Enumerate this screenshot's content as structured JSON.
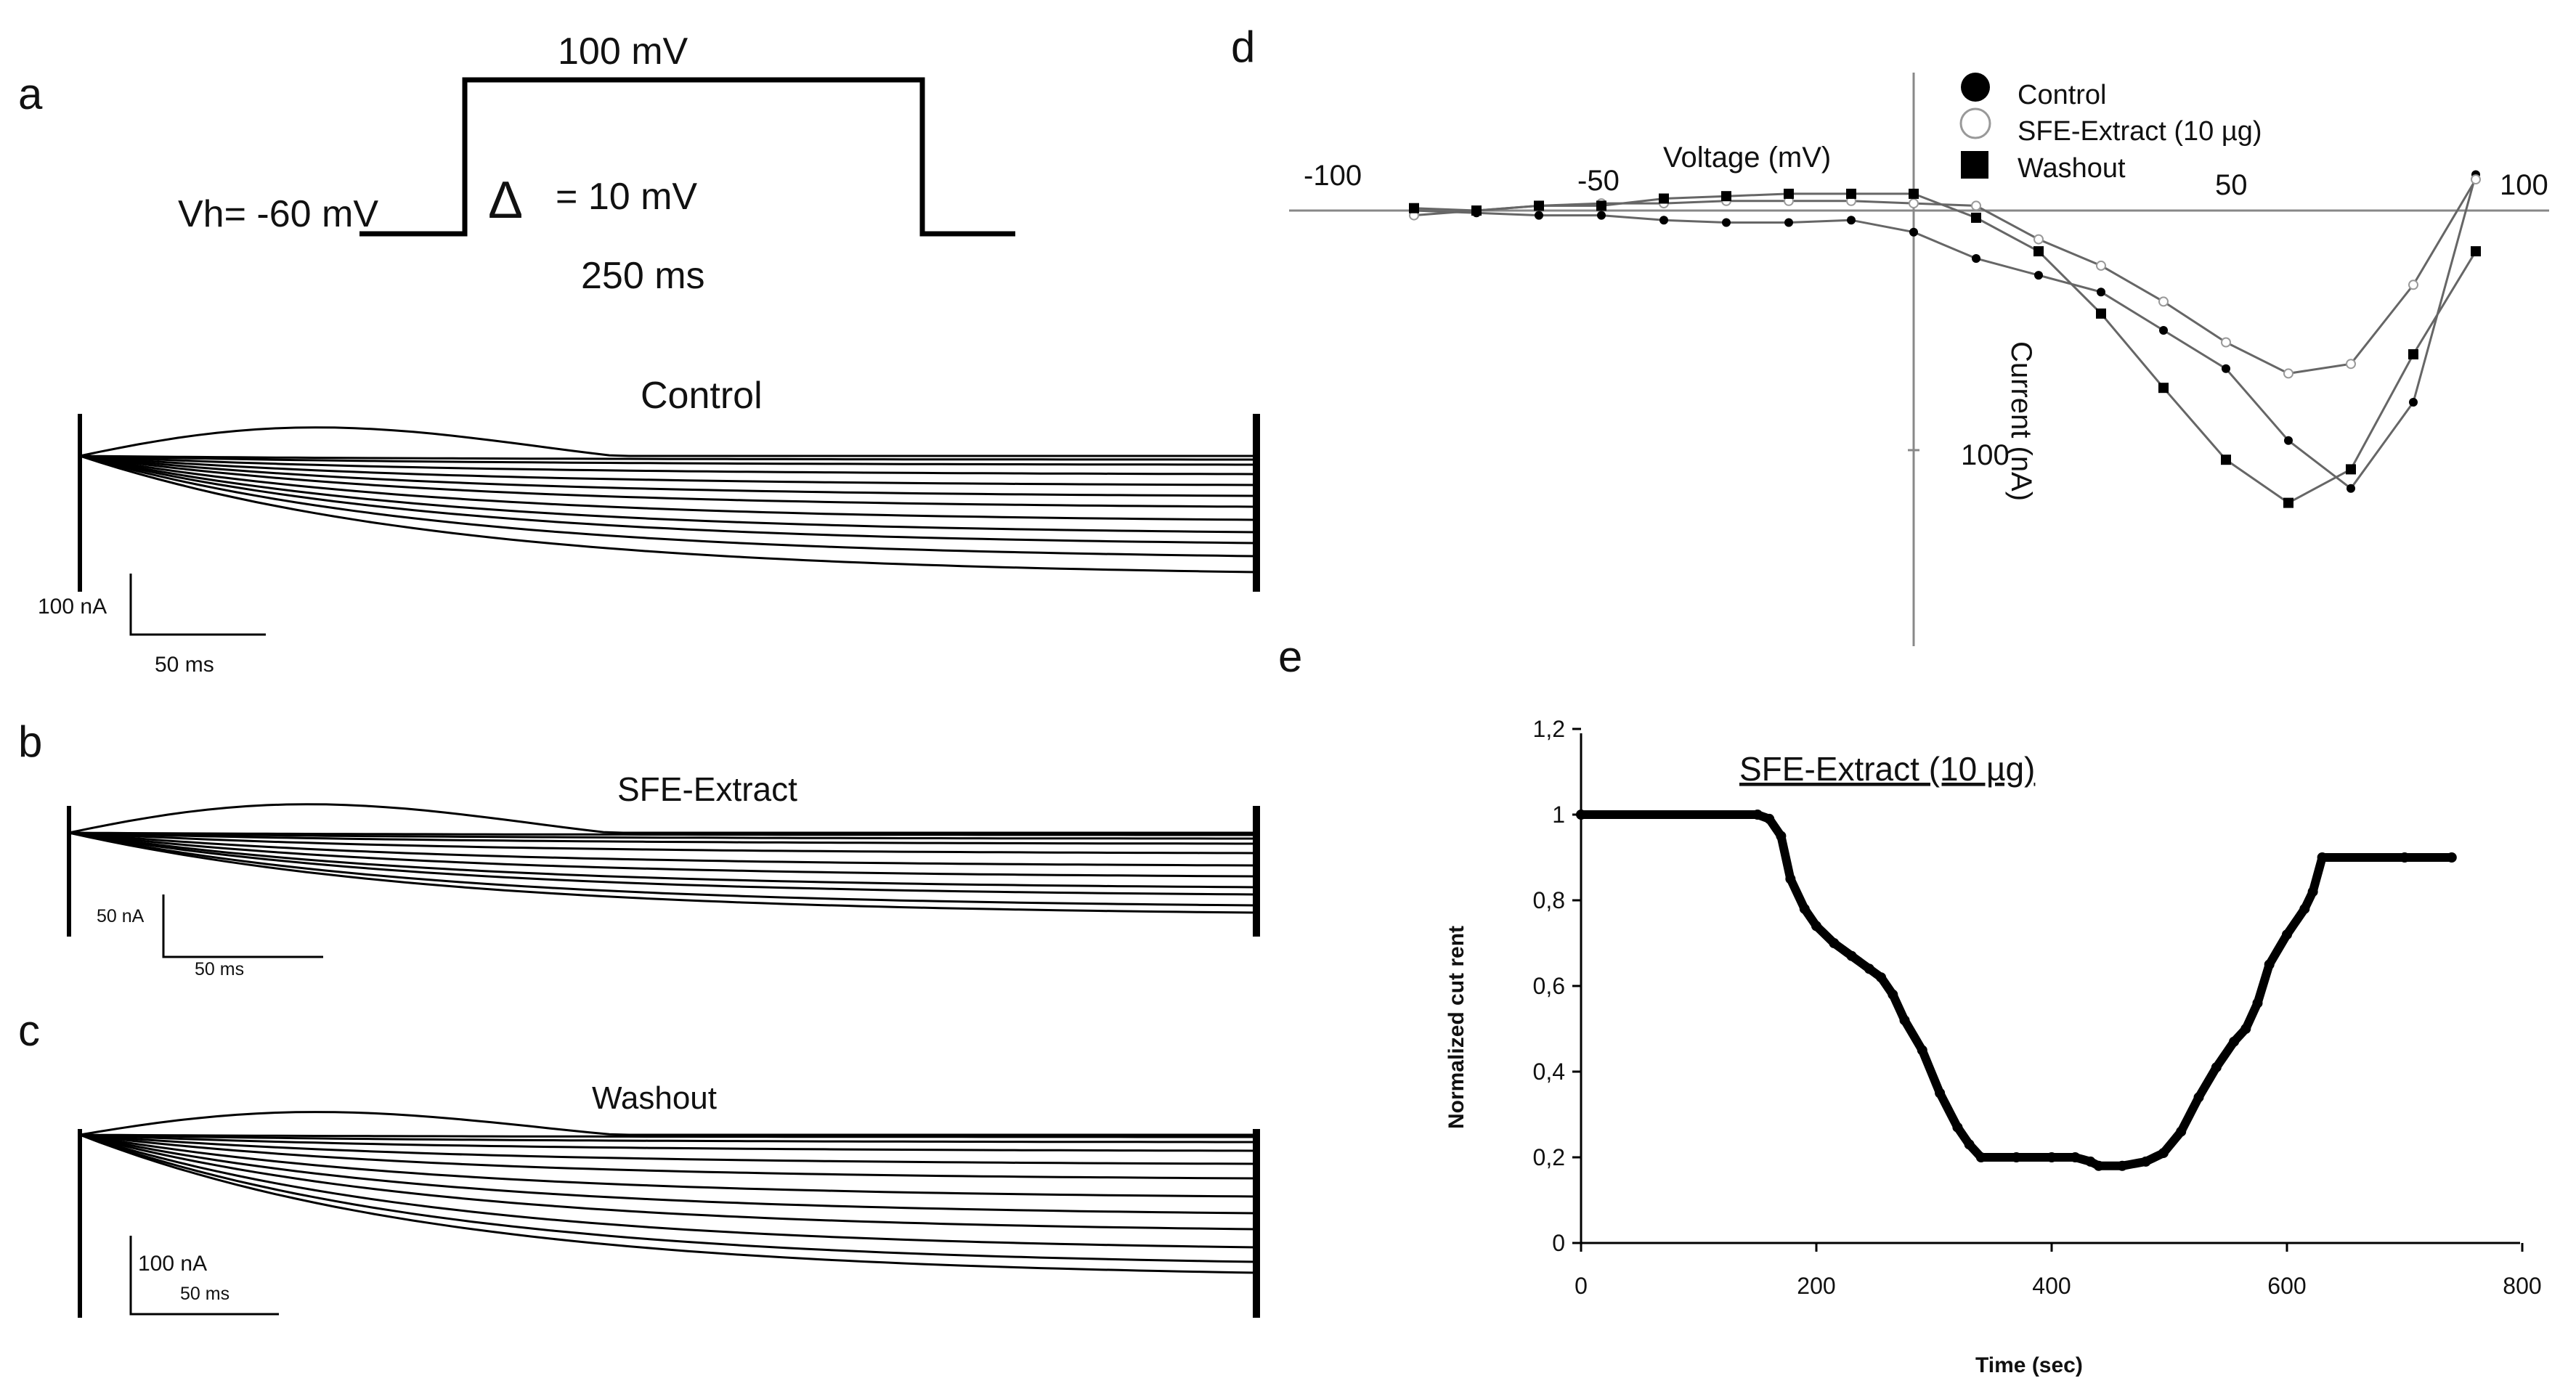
{
  "labels": {
    "a": "a",
    "b": "b",
    "c": "c",
    "d": "d",
    "e": "e"
  },
  "protocol": {
    "step_voltage": "100 mV",
    "holding": "Vh= -60 mV",
    "delta_symbol": "Δ",
    "delta_text": "= 10 mV",
    "duration": "250 ms"
  },
  "traces": {
    "control": {
      "title": "Control",
      "scale_current": "100 nA",
      "scale_time": "50 ms"
    },
    "sfe": {
      "title": "SFE-Extract",
      "scale_current": "50 nA",
      "scale_time": "50 ms"
    },
    "washout": {
      "title": "Washout",
      "scale_current": "100 nA",
      "scale_time": "50 ms"
    }
  },
  "chart_data": [
    {
      "panel": "d",
      "type": "line",
      "xlabel": "Voltage (mV)",
      "ylabel": "Current (nA)",
      "xlim": [
        -100,
        100
      ],
      "x_ticks": [
        "-100",
        "-50",
        "50",
        "100"
      ],
      "y_ticks": [
        "100"
      ],
      "legend_position": "top-center",
      "x": [
        -80,
        -70,
        -60,
        -50,
        -40,
        -30,
        -20,
        -10,
        0,
        10,
        20,
        30,
        40,
        50,
        60,
        70,
        80,
        90
      ],
      "series": [
        {
          "name": "Control",
          "marker": "filled-circle",
          "values": [
            0,
            1,
            2,
            2,
            4,
            5,
            5,
            4,
            9,
            20,
            27,
            34,
            50,
            66,
            96,
            116,
            80,
            -15
          ]
        },
        {
          "name": "SFE-Extract (10 µg)",
          "marker": "open-circle",
          "values": [
            2,
            0,
            -2,
            -3,
            -3,
            -4,
            -4,
            -4,
            -3,
            -2,
            12,
            23,
            38,
            55,
            68,
            64,
            31,
            -13
          ]
        },
        {
          "name": "Washout",
          "marker": "filled-square",
          "values": [
            -1,
            0,
            -2,
            -2,
            -5,
            -6,
            -7,
            -7,
            -7,
            3,
            17,
            43,
            74,
            104,
            122,
            108,
            60,
            17
          ]
        }
      ]
    },
    {
      "panel": "e",
      "type": "line",
      "title": "SFE-Extract (10 µg)",
      "xlabel": "Time (sec)",
      "ylabel": "Normalized cut rent",
      "xlim": [
        0,
        800
      ],
      "ylim": [
        0,
        1.2
      ],
      "x_ticks": [
        "0",
        "200",
        "400",
        "600",
        "800"
      ],
      "y_ticks": [
        "0",
        "0,2",
        "0,4",
        "0,6",
        "0,8",
        "1",
        "1,2"
      ],
      "series": [
        {
          "points": [
            [
              0,
              1.0
            ],
            [
              150,
              1.0
            ],
            [
              160,
              0.99
            ],
            [
              170,
              0.95
            ],
            [
              178,
              0.85
            ],
            [
              190,
              0.78
            ],
            [
              200,
              0.74
            ],
            [
              215,
              0.7
            ],
            [
              230,
              0.67
            ],
            [
              245,
              0.64
            ],
            [
              255,
              0.62
            ],
            [
              265,
              0.58
            ],
            [
              275,
              0.52
            ],
            [
              290,
              0.45
            ],
            [
              305,
              0.35
            ],
            [
              320,
              0.27
            ],
            [
              330,
              0.23
            ],
            [
              340,
              0.2
            ],
            [
              370,
              0.2
            ],
            [
              400,
              0.2
            ],
            [
              420,
              0.2
            ],
            [
              433,
              0.19
            ],
            [
              440,
              0.18
            ],
            [
              460,
              0.18
            ],
            [
              480,
              0.19
            ],
            [
              495,
              0.21
            ],
            [
              510,
              0.26
            ],
            [
              525,
              0.34
            ],
            [
              540,
              0.41
            ],
            [
              555,
              0.47
            ],
            [
              565,
              0.5
            ],
            [
              575,
              0.56
            ],
            [
              585,
              0.65
            ],
            [
              600,
              0.72
            ],
            [
              615,
              0.78
            ],
            [
              622,
              0.82
            ],
            [
              630,
              0.9
            ],
            [
              700,
              0.9
            ],
            [
              740,
              0.9
            ]
          ]
        }
      ]
    }
  ]
}
